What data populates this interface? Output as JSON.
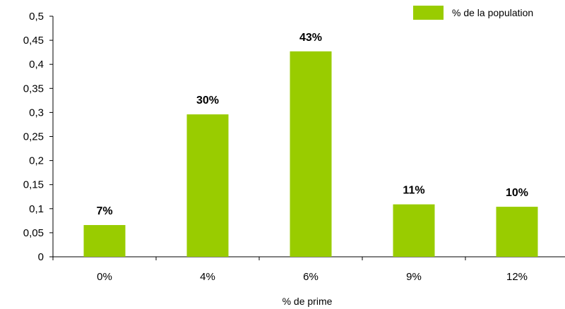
{
  "chart_data": {
    "type": "bar",
    "categories": [
      "0%",
      "4%",
      "6%",
      "9%",
      "12%"
    ],
    "series": [
      {
        "name": "% de la population",
        "values": [
          0.066,
          0.296,
          0.427,
          0.109,
          0.104
        ],
        "color": "#99cc00"
      }
    ],
    "data_labels": [
      "7%",
      "30%",
      "43%",
      "11%",
      "10%"
    ],
    "ylim": [
      0,
      0.5
    ],
    "yticks": [
      "0",
      "0,05",
      "0,1",
      "0,15",
      "0,2",
      "0,25",
      "0,3",
      "0,35",
      "0,4",
      "0,45",
      "0,5"
    ],
    "xlabel": "% de prime",
    "ylabel": "",
    "title": "",
    "grid": false,
    "legend_position": "top-right"
  }
}
